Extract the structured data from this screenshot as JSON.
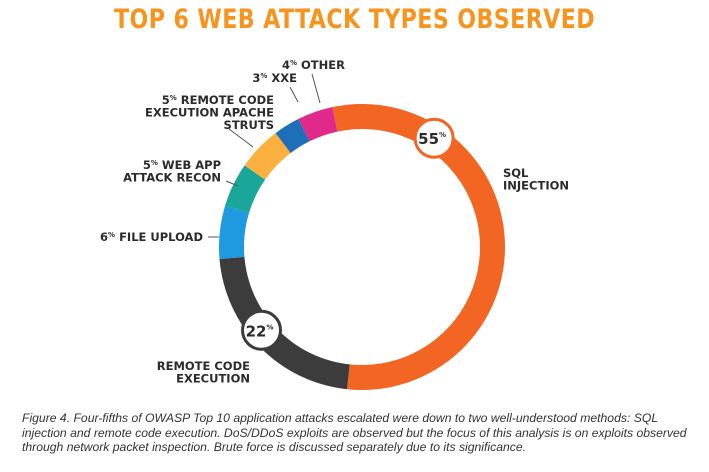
{
  "chart_data": {
    "type": "pie",
    "title": "TOP 6 WEB ATTACK TYPES OBSERVED",
    "unit": "%",
    "slices": [
      {
        "label": "SQL INJECTION",
        "value": 55,
        "color": "#f26522",
        "badge": true
      },
      {
        "label": "REMOTE CODE EXECUTION",
        "value": 22,
        "color": "#3c3c3c",
        "badge": true
      },
      {
        "label": "FILE UPLOAD",
        "value": 6,
        "color": "#1e9be0",
        "badge": false
      },
      {
        "label": "WEB APP ATTACK RECON",
        "value": 5,
        "color": "#1aa79a",
        "badge": false
      },
      {
        "label": "REMOTE CODE EXECUTION APACHE STRUTS",
        "value": 5,
        "color": "#fbb040",
        "badge": false
      },
      {
        "label": "XXE",
        "value": 3,
        "color": "#1f6fb8",
        "badge": false
      },
      {
        "label": "OTHER",
        "value": 4,
        "color": "#e0298a",
        "badge": false
      }
    ]
  },
  "caption": "Figure 4. Four-fifths of OWASP Top 10 application attacks escalated were down to two well-understood methods: SQL injection and remote code execution.  DoS/DDoS exploits are observed but the focus of this analysis is on exploits observed through network packet inspection.  Brute force is discussed separately due to its significance."
}
